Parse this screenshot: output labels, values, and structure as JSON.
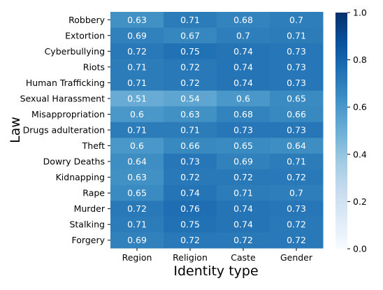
{
  "chart_data": {
    "type": "heatmap",
    "title": "",
    "xlabel": "Identity type",
    "ylabel": "Law",
    "x_categories": [
      "Region",
      "Religion",
      "Caste",
      "Gender"
    ],
    "y_categories": [
      "Robbery",
      "Extortion",
      "Cyberbullying",
      "Riots",
      "Human Trafficking",
      "Sexual Harassment",
      "Misappropriation",
      "Drugs adulteration",
      "Theft",
      "Dowry Deaths",
      "Kidnapping",
      "Rape",
      "Murder",
      "Stalking",
      "Forgery"
    ],
    "values": [
      [
        0.63,
        0.71,
        0.68,
        0.7
      ],
      [
        0.69,
        0.67,
        0.7,
        0.71
      ],
      [
        0.72,
        0.75,
        0.74,
        0.73
      ],
      [
        0.71,
        0.72,
        0.74,
        0.73
      ],
      [
        0.71,
        0.72,
        0.74,
        0.73
      ],
      [
        0.51,
        0.54,
        0.6,
        0.65
      ],
      [
        0.6,
        0.63,
        0.68,
        0.66
      ],
      [
        0.71,
        0.71,
        0.73,
        0.73
      ],
      [
        0.6,
        0.66,
        0.65,
        0.64
      ],
      [
        0.64,
        0.73,
        0.69,
        0.71
      ],
      [
        0.63,
        0.72,
        0.72,
        0.72
      ],
      [
        0.65,
        0.74,
        0.71,
        0.7
      ],
      [
        0.72,
        0.76,
        0.74,
        0.73
      ],
      [
        0.71,
        0.75,
        0.74,
        0.72
      ],
      [
        0.69,
        0.72,
        0.72,
        0.72
      ]
    ],
    "value_labels": [
      [
        "0.63",
        "0.71",
        "0.68",
        "0.7"
      ],
      [
        "0.69",
        "0.67",
        "0.7",
        "0.71"
      ],
      [
        "0.72",
        "0.75",
        "0.74",
        "0.73"
      ],
      [
        "0.71",
        "0.72",
        "0.74",
        "0.73"
      ],
      [
        "0.71",
        "0.72",
        "0.74",
        "0.73"
      ],
      [
        "0.51",
        "0.54",
        "0.6",
        "0.65"
      ],
      [
        "0.6",
        "0.63",
        "0.68",
        "0.66"
      ],
      [
        "0.71",
        "0.71",
        "0.73",
        "0.73"
      ],
      [
        "0.6",
        "0.66",
        "0.65",
        "0.64"
      ],
      [
        "0.64",
        "0.73",
        "0.69",
        "0.71"
      ],
      [
        "0.63",
        "0.72",
        "0.72",
        "0.72"
      ],
      [
        "0.65",
        "0.74",
        "0.71",
        "0.7"
      ],
      [
        "0.72",
        "0.76",
        "0.74",
        "0.73"
      ],
      [
        "0.71",
        "0.75",
        "0.74",
        "0.72"
      ],
      [
        "0.69",
        "0.72",
        "0.72",
        "0.72"
      ]
    ],
    "colorbar": {
      "vmin": 0.0,
      "vmax": 1.0,
      "ticks": [
        0.0,
        0.2,
        0.4,
        0.6,
        0.8,
        1.0
      ],
      "tick_labels": [
        "0.0",
        "0.2",
        "0.4",
        "0.6",
        "0.8",
        "1.0"
      ],
      "colormap": "Blues"
    },
    "colors": {
      "text_on_cell": "#ffffff",
      "axis_text": "#000000",
      "cmap_low": "#f7fbff",
      "cmap_high": "#08306b"
    }
  }
}
